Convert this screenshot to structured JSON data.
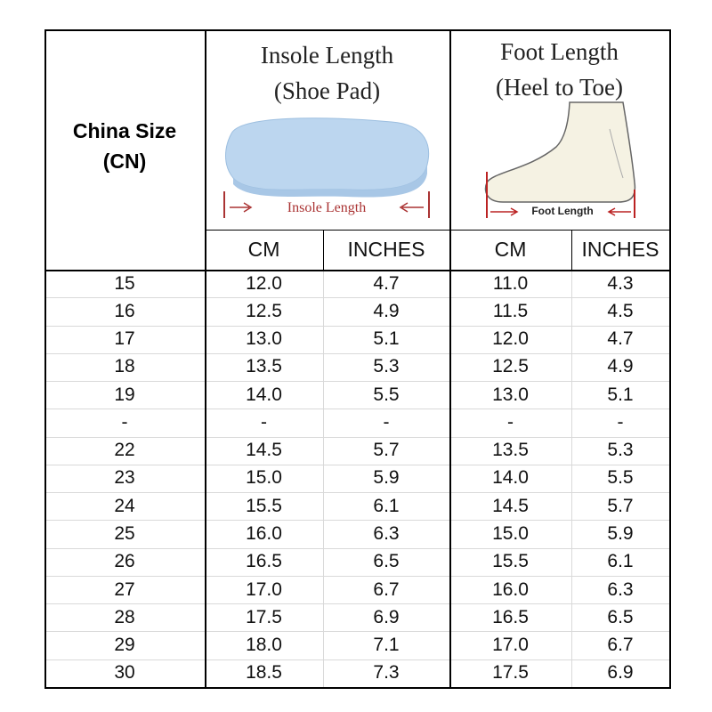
{
  "header": {
    "size": {
      "line1": "China Size",
      "line2": "(CN)"
    },
    "insole": {
      "title": "Insole Length",
      "subtitle": "(Shoe Pad)",
      "image_label": "Insole Length"
    },
    "foot": {
      "title": "Foot Length",
      "subtitle": "(Heel to Toe)",
      "image_label": "Foot Length"
    },
    "units": [
      "CM",
      "INCHES",
      "CM",
      "INCHES"
    ]
  },
  "table": {
    "rows": [
      [
        "15",
        "12.0",
        "4.7",
        "11.0",
        "4.3"
      ],
      [
        "16",
        "12.5",
        "4.9",
        "11.5",
        "4.5"
      ],
      [
        "17",
        "13.0",
        "5.1",
        "12.0",
        "4.7"
      ],
      [
        "18",
        "13.5",
        "5.3",
        "12.5",
        "4.9"
      ],
      [
        "19",
        "14.0",
        "5.5",
        "13.0",
        "5.1"
      ],
      [
        "-",
        "-",
        "-",
        "-",
        "-"
      ],
      [
        "22",
        "14.5",
        "5.7",
        "13.5",
        "5.3"
      ],
      [
        "23",
        "15.0",
        "5.9",
        "14.0",
        "5.5"
      ],
      [
        "24",
        "15.5",
        "6.1",
        "14.5",
        "5.7"
      ],
      [
        "25",
        "16.0",
        "6.3",
        "15.0",
        "5.9"
      ],
      [
        "26",
        "16.5",
        "6.5",
        "15.5",
        "6.1"
      ],
      [
        "27",
        "17.0",
        "6.7",
        "16.0",
        "6.3"
      ],
      [
        "28",
        "17.5",
        "6.9",
        "16.5",
        "6.5"
      ],
      [
        "29",
        "18.0",
        "7.1",
        "17.0",
        "6.7"
      ],
      [
        "30",
        "18.5",
        "7.3",
        "17.5",
        "6.9"
      ]
    ]
  }
}
